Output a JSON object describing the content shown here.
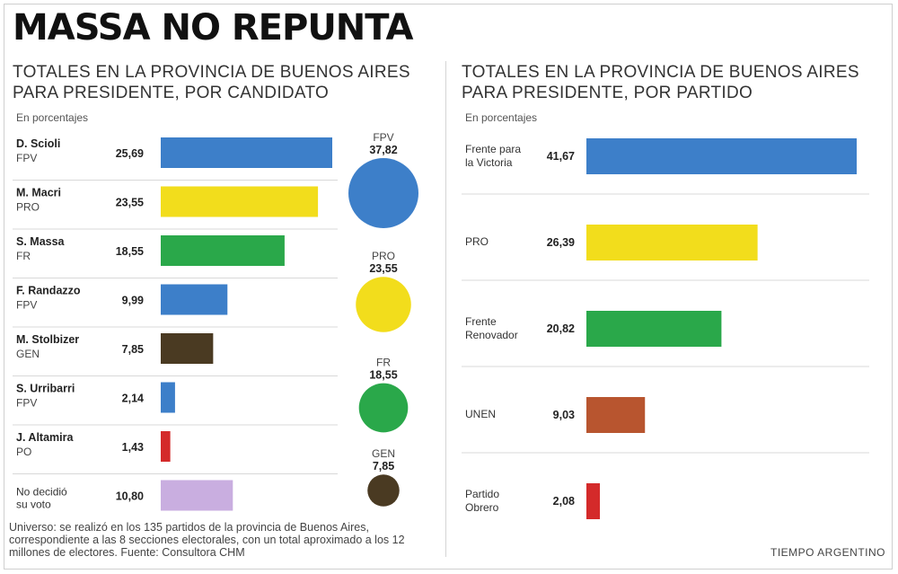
{
  "title": "MASSA NO REPUNTA",
  "left_panel": {
    "subtitle_line1": "TOTALES EN LA PROVINCIA DE BUENOS AIRES",
    "subtitle_line2": "PARA PRESIDENTE, POR CANDIDATO",
    "unit": "En porcentajes"
  },
  "right_panel": {
    "subtitle_line1": "TOTALES EN LA PROVINCIA DE BUENOS AIRES",
    "subtitle_line2": "PARA PRESIDENTE, POR PARTIDO",
    "unit": "En porcentajes"
  },
  "source": "Universo: se realizó en los 135 partidos de la provincia de Buenos Aires, correspondiente a las 8 secciones electorales, con un total aproximado a los 12 millones de electores. Fuente: Consultora CHM",
  "credit": "TIEMPO ARGENTINO",
  "colors": {
    "fpv": "#3d7fc9",
    "pro": "#f2dd1c",
    "fr": "#2aa84a",
    "gen": "#4a3a22",
    "po": "#d42a2a",
    "undecided": "#c9aee0",
    "unen": "#b8552f"
  },
  "chart_data": [
    {
      "type": "bar",
      "orientation": "horizontal",
      "categories": [
        {
          "name": "D. Scioli",
          "party": "FPV"
        },
        {
          "name": "M. Macri",
          "party": "PRO"
        },
        {
          "name": "S. Massa",
          "party": "FR"
        },
        {
          "name": "F. Randazzo",
          "party": "FPV"
        },
        {
          "name": "M. Stolbizer",
          "party": "GEN"
        },
        {
          "name": "S. Urribarri",
          "party": "FPV"
        },
        {
          "name": "J. Altamira",
          "party": "PO"
        },
        {
          "name": "No decidió su voto",
          "party": ""
        }
      ],
      "values": [
        25.69,
        23.55,
        18.55,
        9.99,
        7.85,
        2.14,
        1.43,
        10.8
      ],
      "value_labels": [
        "25,69",
        "23,55",
        "18,55",
        "9,99",
        "7,85",
        "2,14",
        "1,43",
        "10,80"
      ],
      "colors": [
        "#3d7fc9",
        "#f2dd1c",
        "#2aa84a",
        "#3d7fc9",
        "#4a3a22",
        "#3d7fc9",
        "#d42a2a",
        "#c9aee0"
      ]
    },
    {
      "type": "bubble",
      "categories": [
        "FPV",
        "PRO",
        "FR",
        "GEN"
      ],
      "values": [
        37.82,
        23.55,
        18.55,
        7.85
      ],
      "value_labels": [
        "37,82",
        "23,55",
        "18,55",
        "7,85"
      ],
      "colors": [
        "#3d7fc9",
        "#f2dd1c",
        "#2aa84a",
        "#4a3a22"
      ]
    },
    {
      "type": "bar",
      "orientation": "horizontal",
      "categories": [
        "Frente para la Victoria",
        "PRO",
        "Frente Renovador",
        "UNEN",
        "Partido Obrero"
      ],
      "values": [
        41.67,
        26.39,
        20.82,
        9.03,
        2.08
      ],
      "value_labels": [
        "41,67",
        "26,39",
        "20,82",
        "9,03",
        "2,08"
      ],
      "colors": [
        "#3d7fc9",
        "#f2dd1c",
        "#2aa84a",
        "#b8552f",
        "#d42a2a"
      ]
    }
  ]
}
